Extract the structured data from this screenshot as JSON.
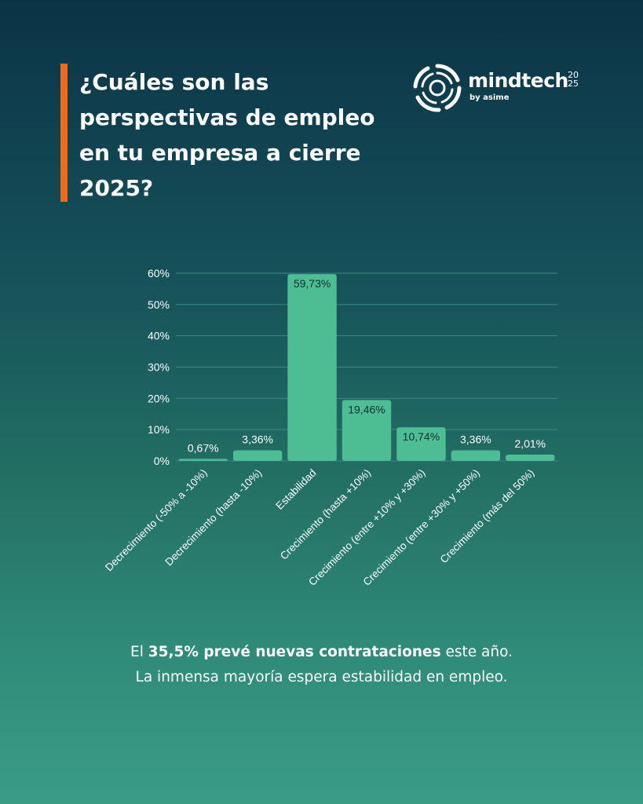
{
  "title": "¿Cuáles son las perspectivas de empleo en tu empresa a cierre 2025?",
  "logo": {
    "name": "mindtech",
    "year": "2025",
    "subtitle": "by asime"
  },
  "colors": {
    "accent": "#f2691c",
    "bar": "#4dbd93",
    "grid": "#3e8a86"
  },
  "chart_data": {
    "type": "bar",
    "categories": [
      "Decrecimiento (-50% a -10%)",
      "Decrecimiento (hasta -10%)",
      "Estabilidad",
      "Crecimiento (hasta +10%)",
      "Crecimiento (entre +10% y +30%)",
      "Crecimiento (entre +30% y +50%)",
      "Crecimiento (más del 50%)"
    ],
    "values": [
      0.67,
      3.36,
      59.73,
      19.46,
      10.74,
      3.36,
      2.01
    ],
    "data_labels": [
      "0,67%",
      "3,36%",
      "59,73%",
      "19,46%",
      "10,74%",
      "3,36%",
      "2,01%"
    ],
    "ylim": [
      0,
      60
    ],
    "yticks": [
      "0%",
      "10%",
      "20%",
      "30%",
      "40%",
      "50%",
      "60%"
    ],
    "grid": true
  },
  "footer": {
    "line1_prefix": "El ",
    "line1_bold": "35,5% prevé nuevas contrataciones",
    "line1_suffix": " este año.",
    "line2": "La inmensa mayoría espera estabilidad en empleo."
  }
}
